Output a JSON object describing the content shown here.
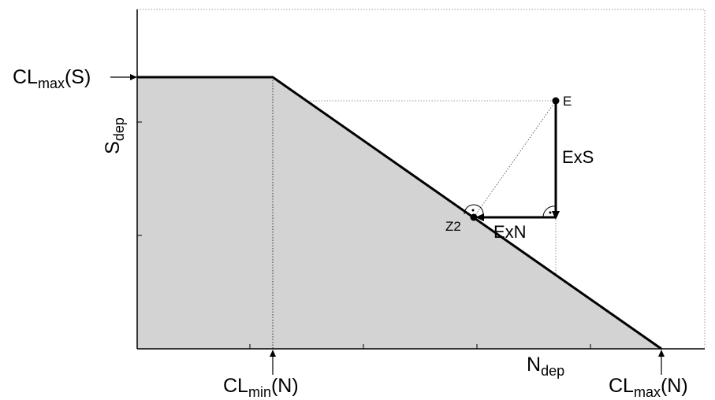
{
  "labels": {
    "cl_max_s": {
      "base": "CL",
      "sub": "max",
      "tail": "(S)"
    },
    "s_dep": {
      "base": "S",
      "sub": "dep"
    },
    "cl_min_n": {
      "base": "CL",
      "sub": "min",
      "tail": "(N)"
    },
    "n_dep": {
      "base": "N",
      "sub": "dep"
    },
    "cl_max_n": {
      "base": "CL",
      "sub": "max",
      "tail": "(N)"
    },
    "point_e": "E",
    "point_z2": "Z2",
    "exs": "ExS",
    "exn": "ExN"
  },
  "colors": {
    "region_fill": "#d3d3d3",
    "line": "#000000",
    "grid": "#9a9a9a"
  }
}
